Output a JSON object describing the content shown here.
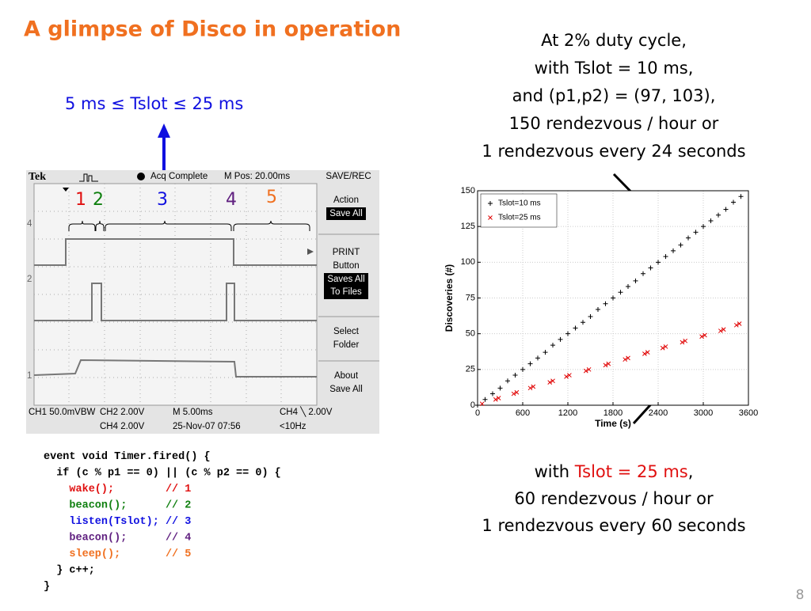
{
  "title": "A glimpse of Disco in operation",
  "tslot_range": "5 ms ≤ Tslot ≤ 25 ms",
  "scope": {
    "brand": "Tek",
    "status": "Acq Complete",
    "mpos": "M Pos: 20.00ms",
    "menu_title": "SAVE/REC",
    "menu": [
      "Action",
      "Save All",
      "PRINT",
      "Button",
      "Saves All",
      "To Files",
      "Select",
      "Folder",
      "About",
      "Save All"
    ],
    "channel_markers": [
      "4",
      "2",
      "1"
    ],
    "footer": [
      "CH1  50.0mVBW",
      "CH2 2.00V",
      "M 5.00ms",
      "CH4 ╲ 2.00V",
      "CH4 2.00V",
      "25-Nov-07 07:56",
      "<10Hz"
    ],
    "segments": [
      "1",
      "2",
      "3",
      "4",
      "5"
    ]
  },
  "code": {
    "lines": [
      {
        "code": "event void Timer.fired() {"
      },
      {
        "code": "  if (c % p1 == 0) || (c % p2 == 0) {"
      },
      {
        "code": "    wake();        ",
        "comment": "// 1"
      },
      {
        "code": "    beacon();      ",
        "comment": "// 2"
      },
      {
        "code": "    listen(Tslot); ",
        "comment": "// 3"
      },
      {
        "code": "    beacon();      ",
        "comment": "// 4"
      },
      {
        "code": "    sleep();       ",
        "comment": "// 5"
      },
      {
        "code": "  } c++;"
      },
      {
        "code": "}"
      }
    ]
  },
  "note_top": [
    "At 2% duty cycle,",
    "with Tslot = 10 ms,",
    "and (p1,p2) = (97, 103),",
    "150 rendezvous / hour or",
    "1 rendezvous every 24 seconds"
  ],
  "note_bottom": {
    "prefix": "with ",
    "highlight": "Tslot = 25 ms",
    "suffix": ",",
    "lines": [
      "60 rendezvous / hour or",
      "1 rendezvous every 60 seconds"
    ]
  },
  "page_number": "8",
  "chart_data": {
    "type": "scatter",
    "xlabel": "Time (s)",
    "ylabel": "Discoveries (#)",
    "xlim": [
      0,
      3600
    ],
    "ylim": [
      0,
      150
    ],
    "xticks": [
      0,
      600,
      1200,
      1800,
      2400,
      3000,
      3600
    ],
    "yticks": [
      0,
      25,
      50,
      75,
      100,
      125,
      150
    ],
    "grid": true,
    "legend": "upper left",
    "series": [
      {
        "name": "Tslot=10 ms",
        "color": "#000000",
        "marker": "+",
        "x": [
          0,
          100,
          200,
          300,
          400,
          500,
          600,
          700,
          800,
          900,
          1000,
          1100,
          1200,
          1300,
          1400,
          1500,
          1600,
          1700,
          1800,
          1900,
          2000,
          2100,
          2200,
          2300,
          2400,
          2500,
          2600,
          2700,
          2800,
          2900,
          3000,
          3100,
          3200,
          3300,
          3400,
          3500
        ],
        "values": [
          0,
          4,
          8,
          12,
          17,
          21,
          25,
          29,
          33,
          37,
          42,
          46,
          50,
          54,
          58,
          62,
          67,
          71,
          75,
          79,
          83,
          87,
          92,
          96,
          100,
          104,
          108,
          112,
          117,
          121,
          125,
          129,
          133,
          137,
          142,
          146
        ]
      },
      {
        "name": "Tslot=25 ms",
        "color": "#e00000",
        "marker": "x",
        "x": [
          60,
          240,
          280,
          480,
          520,
          700,
          740,
          960,
          1000,
          1180,
          1220,
          1440,
          1480,
          1700,
          1740,
          1960,
          2000,
          2220,
          2260,
          2460,
          2500,
          2720,
          2760,
          2980,
          3020,
          3230,
          3270,
          3440,
          3480
        ],
        "values": [
          1,
          4,
          5,
          8,
          9,
          12,
          13,
          16,
          17,
          20,
          21,
          24,
          25,
          28,
          29,
          32,
          33,
          36,
          37,
          40,
          41,
          44,
          45,
          48,
          49,
          52,
          53,
          56,
          57
        ]
      }
    ]
  }
}
